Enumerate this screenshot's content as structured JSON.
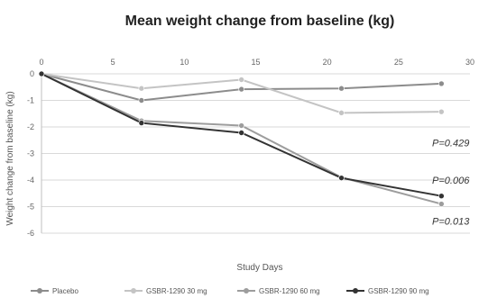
{
  "chart_data": {
    "type": "line",
    "title": "Mean weight change from baseline (kg)",
    "xlabel": "Study Days",
    "ylabel": "Weight change from baseline (kg)",
    "xlim": [
      0,
      30
    ],
    "ylim": [
      -6,
      0
    ],
    "xticks": [
      0,
      5,
      10,
      15,
      20,
      25,
      30
    ],
    "yticks": [
      0,
      -1,
      -2,
      -3,
      -4,
      -5,
      -6
    ],
    "x_axis_position": "top",
    "grid": "horizontal",
    "legend_position": "bottom",
    "series": [
      {
        "name": "Placebo",
        "color": "#8c8c8c",
        "x": [
          0,
          7,
          14,
          21,
          28
        ],
        "y": [
          0,
          -1.0,
          -0.58,
          -0.55,
          -0.37
        ]
      },
      {
        "name": "GSBR-1290 30 mg",
        "color": "#c4c4c4",
        "x": [
          0,
          7,
          14,
          21,
          28
        ],
        "y": [
          0,
          -0.55,
          -0.22,
          -1.47,
          -1.43
        ]
      },
      {
        "name": "GSBR-1290 60 mg",
        "color": "#9d9d9d",
        "x": [
          0,
          7,
          14,
          21,
          28
        ],
        "y": [
          0,
          -1.77,
          -1.95,
          -3.9,
          -4.9
        ]
      },
      {
        "name": "GSBR-1290 90 mg",
        "color": "#333333",
        "x": [
          0,
          7,
          14,
          21,
          28
        ],
        "y": [
          0,
          -1.85,
          -2.22,
          -3.92,
          -4.6
        ]
      }
    ],
    "annotations": [
      {
        "text": "P=0.429",
        "x": 28,
        "y": -2.6
      },
      {
        "text": "P=0.006",
        "x": 28,
        "y": -4.0
      },
      {
        "text": "P=0.013",
        "x": 28,
        "y": -5.55
      }
    ]
  }
}
